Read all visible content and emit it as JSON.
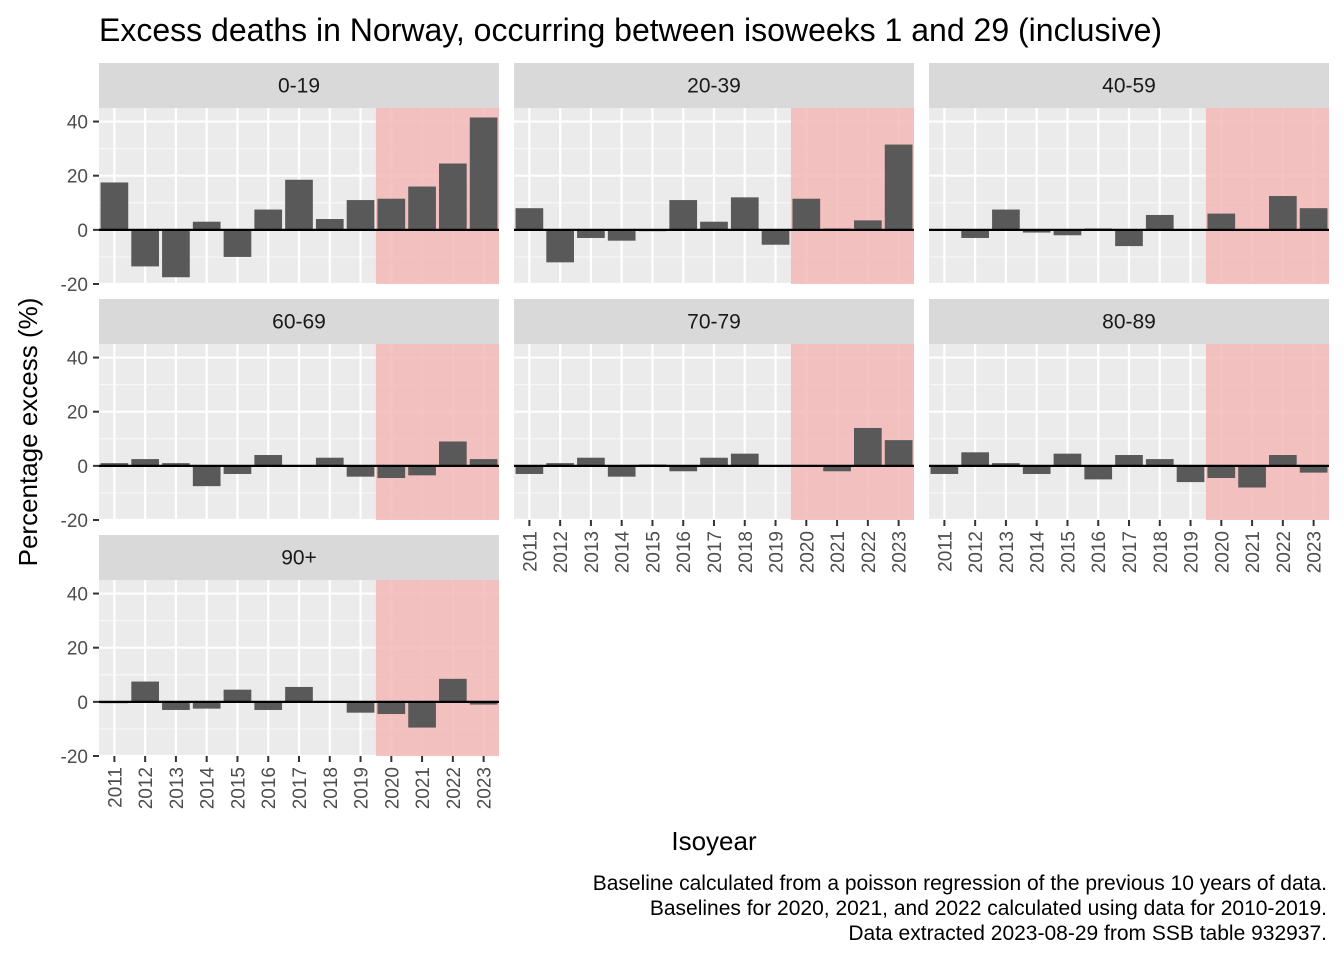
{
  "chart_data": {
    "type": "bar",
    "title": "Excess deaths in Norway, occurring between isoweeks 1 and 29 (inclusive)",
    "xlabel": "Isoyear",
    "ylabel": "Percentage excess (%)",
    "ylim": [
      -20,
      45
    ],
    "yticks": [
      -20,
      0,
      20,
      40
    ],
    "categories": [
      "2011",
      "2012",
      "2013",
      "2014",
      "2015",
      "2016",
      "2017",
      "2018",
      "2019",
      "2020",
      "2021",
      "2022",
      "2023"
    ],
    "highlight": {
      "from": "2020",
      "to": "2023",
      "color": "#f4b8b8"
    },
    "bar_color": "#595959",
    "panel_background": "#ebebeb",
    "strip_background": "#d9d9d9",
    "grid": true,
    "facets": [
      {
        "name": "0-19",
        "values": [
          17.5,
          -13.5,
          -17.5,
          3,
          -10,
          7.5,
          18.5,
          4,
          11,
          11.5,
          16,
          24.5,
          41.5
        ]
      },
      {
        "name": "20-39",
        "values": [
          8,
          -12,
          -3,
          -4,
          -0.5,
          11,
          3,
          12,
          -5.5,
          11.5,
          0.5,
          3.5,
          31.5
        ]
      },
      {
        "name": "40-59",
        "values": [
          0,
          -3,
          7.5,
          -1,
          -2,
          0.5,
          -6,
          5.5,
          0,
          6,
          0,
          12.5,
          8
        ]
      },
      {
        "name": "60-69",
        "values": [
          1,
          2.5,
          1,
          -7.5,
          -3,
          4,
          0,
          3,
          -4,
          -4.5,
          -3.5,
          9,
          2.5
        ]
      },
      {
        "name": "70-79",
        "values": [
          -3,
          1,
          3,
          -4,
          0.5,
          -2,
          3,
          4.5,
          0,
          0,
          -2,
          14,
          9.5
        ]
      },
      {
        "name": "80-89",
        "values": [
          -3,
          5,
          1,
          -3,
          4.5,
          -5,
          4,
          2.5,
          -6,
          -4.5,
          -8,
          4,
          -2.5
        ]
      },
      {
        "name": "90+",
        "values": [
          -0.5,
          7.5,
          -3,
          -2.5,
          4.5,
          -3,
          5.5,
          0,
          -4,
          -4.5,
          -9.5,
          8.5,
          -1
        ]
      }
    ],
    "caption": [
      "Baseline calculated from a poisson regression of the previous 10 years of data.",
      "Baselines for 2020, 2021, and 2022 calculated using data for 2010-2019.",
      "Data extracted 2023-08-29 from SSB table 932937."
    ]
  }
}
